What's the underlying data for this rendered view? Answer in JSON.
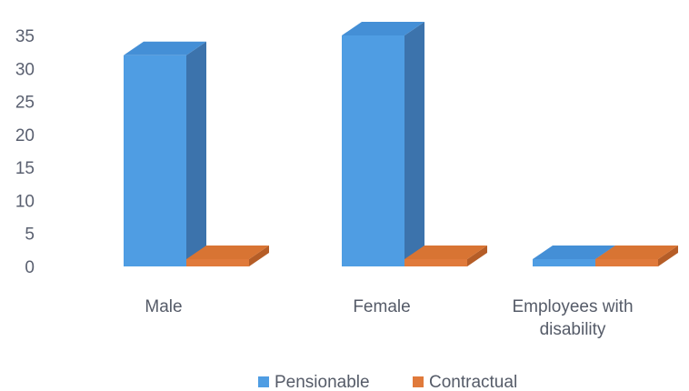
{
  "chart_data": {
    "type": "bar",
    "style": "3d-columns",
    "categories": [
      "Male",
      "Female",
      "Employees with disability"
    ],
    "category_lines": [
      [
        "Male"
      ],
      [
        "Female"
      ],
      [
        "Employees with",
        "disability"
      ]
    ],
    "series": [
      {
        "name": "Pensionable",
        "values": [
          32,
          35,
          0.5
        ]
      },
      {
        "name": "Contractual",
        "values": [
          1,
          0,
          0
        ]
      }
    ],
    "y_ticks": [
      0,
      5,
      10,
      15,
      20,
      25,
      30,
      35
    ],
    "ylim": [
      0,
      35
    ],
    "grid": false,
    "legend_position": "bottom",
    "colors": {
      "Pensionable": {
        "front": "#4f9de3",
        "side": "#3c73ac",
        "top": "#448fd6"
      },
      "Contractual": {
        "front": "#e07a3b",
        "side": "#b55d27",
        "top": "#d87433"
      }
    }
  }
}
